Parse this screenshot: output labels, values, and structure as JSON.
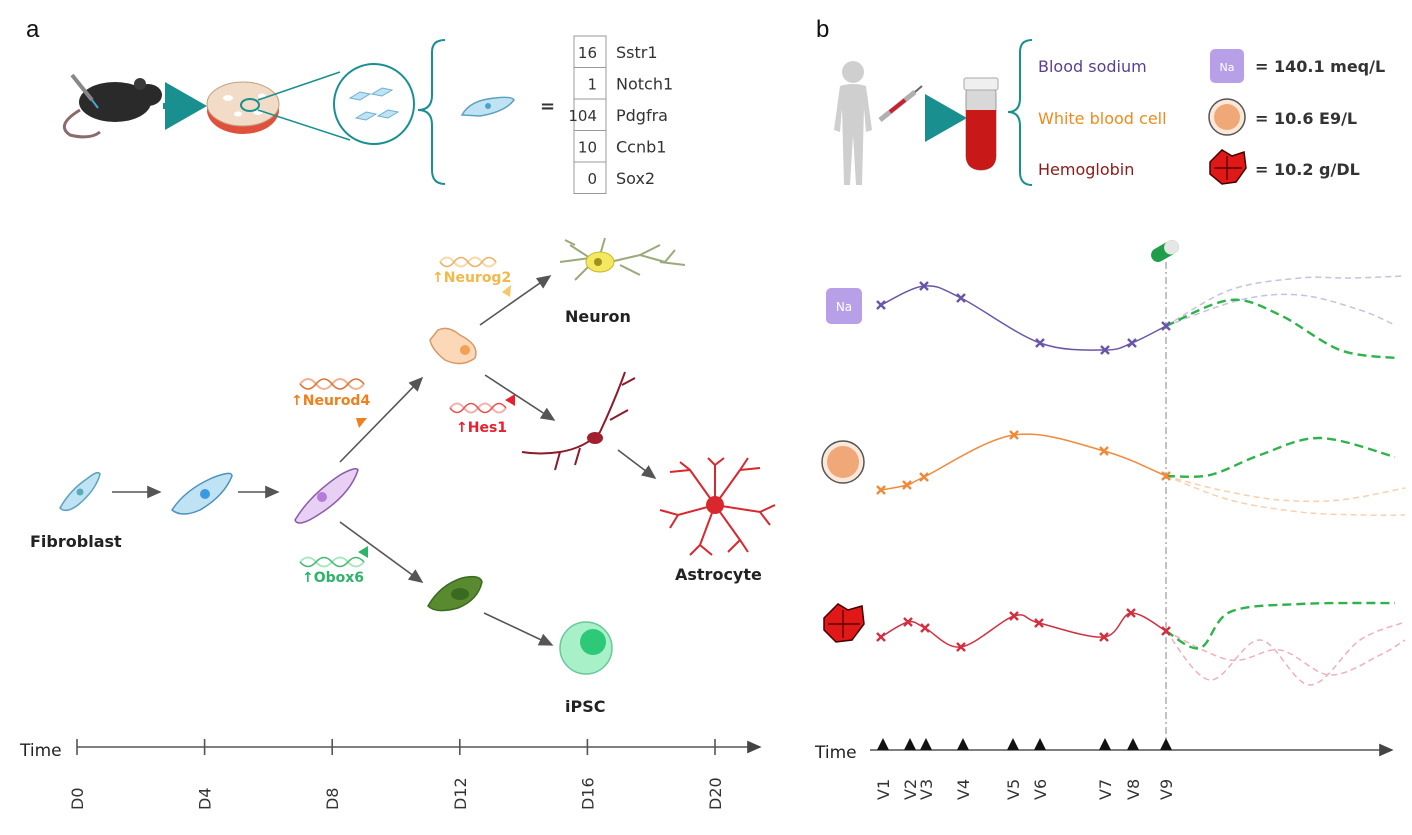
{
  "panel_a": {
    "letter": "a",
    "gene_table": [
      {
        "count": "16",
        "gene": "Sstr1"
      },
      {
        "count": "1",
        "gene": "Notch1"
      },
      {
        "count": "104",
        "gene": "Pdgfra"
      },
      {
        "count": "10",
        "gene": "Ccnb1"
      },
      {
        "count": "0",
        "gene": "Sox2"
      }
    ],
    "equals": "=",
    "cells": {
      "fibroblast": "Fibroblast",
      "neuron": "Neuron",
      "astrocyte": "Astrocyte",
      "ipsc": "iPSC"
    },
    "genes": {
      "neurod4": "↑Neurod4",
      "neurog2": "↑Neurog2",
      "hes1": "↑Hes1",
      "obox6": "↑Obox6"
    },
    "timeline": {
      "label": "Time",
      "ticks": [
        "D0",
        "D4",
        "D8",
        "D12",
        "D16",
        "D20"
      ]
    }
  },
  "panel_b": {
    "letter": "b",
    "measures": [
      {
        "name": "Blood sodium",
        "value": "= 140.1 meq/L",
        "color": "#5b3f95",
        "icon": "sodium-icon"
      },
      {
        "name": "White blood cell",
        "value": "= 10.6 E9/L",
        "color": "#f08a1c",
        "icon": "white-blood-cell-icon"
      },
      {
        "name": "Hemoglobin",
        "value": "= 10.2 g/DL",
        "color": "#8b1a1a",
        "icon": "hemoglobin-icon"
      }
    ],
    "na_badge": "Na",
    "timeline": {
      "label": "Time",
      "visits": [
        "V1",
        "V2",
        "V3",
        "V4",
        "V5",
        "V6",
        "V7",
        "V8",
        "V9"
      ]
    }
  },
  "colors": {
    "teal": "#1a8f8f",
    "purple": "#6a4fa3",
    "orange": "#f08a3a",
    "red": "#c8283a",
    "green": "#2db34a",
    "neurod4": "#f0801e",
    "neurog2": "#f2b84a",
    "hes1": "#e8202e",
    "obox6": "#2db36a"
  }
}
